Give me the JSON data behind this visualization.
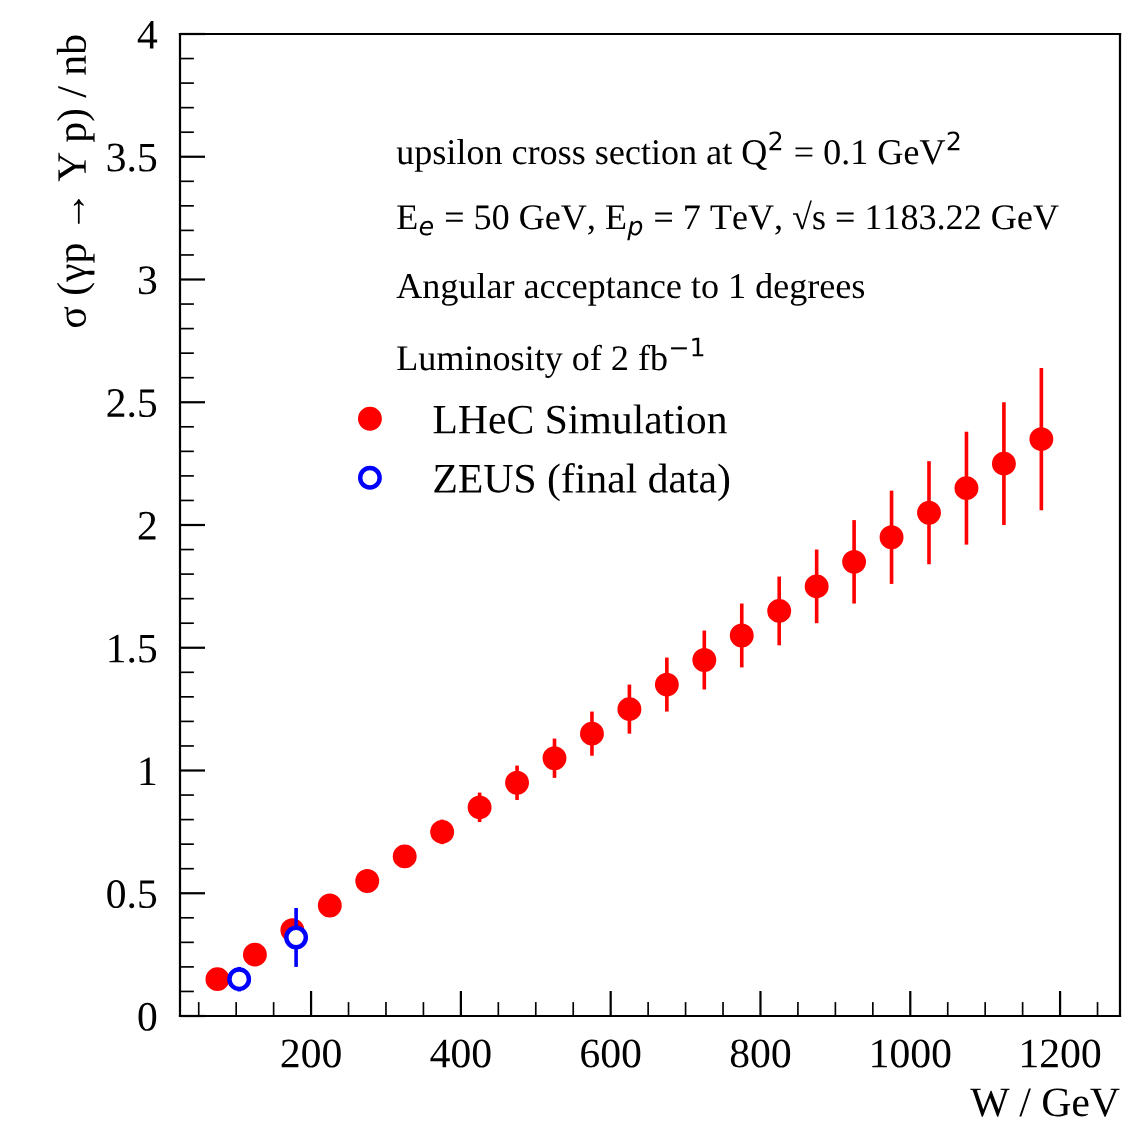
{
  "chart_data": {
    "type": "scatter",
    "xlabel": "W / GeV",
    "ylabel": "σ (γp → Υ p) / nb",
    "annotations": [
      "upsilon cross section at Q$^{2}$ = 0.1 GeV$^{2}$",
      "E$_{e}$ = 50 GeV, E$_{p}$ = 7 TeV, √s = 1183.22 GeV",
      "Angular acceptance to 1 degrees",
      "Luminosity of 2 fb$^{−1}$"
    ],
    "xlim": [
      25,
      1280
    ],
    "ylim": [
      0,
      4
    ],
    "xticks": [
      200,
      400,
      600,
      800,
      1000,
      1200
    ],
    "yticks": [
      0,
      0.5,
      1,
      1.5,
      2,
      2.5,
      3,
      3.5,
      4
    ],
    "grid": false,
    "legend": "top left",
    "series": [
      {
        "name": "LHeC Simulation",
        "color": "#ff0000",
        "marker": "circle",
        "x": [
          75,
          125,
          175,
          225,
          275,
          325,
          375,
          425,
          475,
          525,
          575,
          625,
          675,
          725,
          775,
          825,
          875,
          925,
          975,
          1025,
          1075,
          1125,
          1175
        ],
        "values": [
          0.15,
          0.25,
          0.35,
          0.45,
          0.55,
          0.65,
          0.75,
          0.85,
          0.95,
          1.05,
          1.15,
          1.25,
          1.35,
          1.45,
          1.55,
          1.65,
          1.75,
          1.85,
          1.95,
          2.05,
          2.15,
          2.25,
          2.35
        ],
        "errors": [
          null,
          null,
          null,
          0.02,
          0.03,
          0.04,
          0.05,
          0.06,
          0.07,
          0.08,
          0.09,
          0.1,
          0.11,
          0.12,
          0.13,
          0.14,
          0.15,
          0.17,
          0.19,
          0.21,
          0.23,
          0.25,
          0.29
        ]
      },
      {
        "name": "ZEUS (final data)",
        "color": "#0000ff",
        "marker": "circle_open",
        "x": [
          104,
          180
        ],
        "values": [
          0.15,
          0.32
        ],
        "errors": [
          0.05,
          0.12
        ]
      }
    ]
  }
}
